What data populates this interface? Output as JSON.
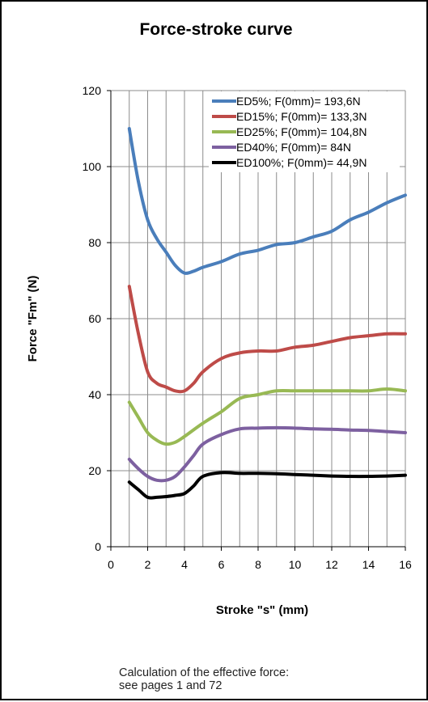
{
  "chart_data": {
    "type": "line",
    "title": "Force-stroke curve",
    "xlabel": "Stroke \"s\" (mm)",
    "ylabel": "Force \"Fm\" (N)",
    "xlim": [
      0,
      16
    ],
    "ylim": [
      0,
      120
    ],
    "x_ticks": [
      0,
      2,
      4,
      6,
      8,
      10,
      12,
      14,
      16
    ],
    "y_ticks": [
      0,
      20,
      40,
      60,
      80,
      100,
      120
    ],
    "grid": "vertical gridlines every 1 mm, horizontal every 20 N",
    "legend_position": "top-right",
    "series": [
      {
        "name": "ED5%; F(0mm)= 193,6N",
        "color": "#4a7ebb",
        "x": [
          1,
          1.5,
          2,
          2.5,
          3,
          3.5,
          4,
          4.5,
          5,
          6,
          7,
          8,
          9,
          10,
          11,
          12,
          13,
          14,
          15,
          16
        ],
        "y": [
          110,
          96,
          86,
          81,
          77.5,
          74,
          72,
          72.5,
          73.5,
          75,
          77,
          78,
          79.5,
          80,
          81.5,
          83,
          86,
          88,
          90.5,
          92.5
        ]
      },
      {
        "name": "ED15%; F(0mm)= 133,3N",
        "color": "#be4b48",
        "x": [
          1,
          1.5,
          2,
          2.5,
          3,
          3.5,
          4,
          4.5,
          5,
          6,
          7,
          8,
          9,
          10,
          11,
          12,
          13,
          14,
          15,
          16
        ],
        "y": [
          68.5,
          56,
          46,
          43,
          42,
          41,
          41,
          43,
          46,
          49.5,
          51,
          51.5,
          51.5,
          52.5,
          53,
          54,
          55,
          55.5,
          56,
          56
        ]
      },
      {
        "name": "ED25%; F(0mm)= 104,8N",
        "color": "#98b954",
        "x": [
          1,
          1.5,
          2,
          2.5,
          3,
          3.5,
          4,
          5,
          6,
          7,
          8,
          9,
          10,
          11,
          12,
          13,
          14,
          15,
          16
        ],
        "y": [
          38,
          34,
          30,
          28,
          27,
          27.5,
          29,
          32.5,
          35.5,
          39,
          40,
          41,
          41,
          41,
          41,
          41,
          41,
          41.5,
          41
        ]
      },
      {
        "name": "ED40%; F(0mm)= 84N",
        "color": "#7d60a0",
        "x": [
          1,
          1.5,
          2,
          2.5,
          3,
          3.5,
          4,
          4.5,
          5,
          6,
          7,
          8,
          9,
          10,
          11,
          12,
          13,
          14,
          15,
          16
        ],
        "y": [
          23,
          20.5,
          18.5,
          17.5,
          17.5,
          18.5,
          21,
          24,
          27,
          29.5,
          31,
          31.2,
          31.3,
          31.2,
          31,
          30.9,
          30.7,
          30.6,
          30.3,
          30
        ]
      },
      {
        "name": "ED100%; F(0mm)= 44,9N",
        "color": "#000000",
        "x": [
          1,
          1.5,
          2,
          2.5,
          3,
          3.5,
          4,
          4.5,
          5,
          6,
          7,
          8,
          9,
          10,
          11,
          12,
          13,
          14,
          15,
          16
        ],
        "y": [
          17,
          15,
          13,
          13,
          13.2,
          13.5,
          14,
          16,
          18.5,
          19.5,
          19.3,
          19.3,
          19.2,
          19,
          18.8,
          18.6,
          18.5,
          18.5,
          18.6,
          18.8
        ]
      }
    ]
  },
  "footnote": {
    "line1": "Calculation of the effective force:",
    "line2": "see pages 1 and 72"
  }
}
